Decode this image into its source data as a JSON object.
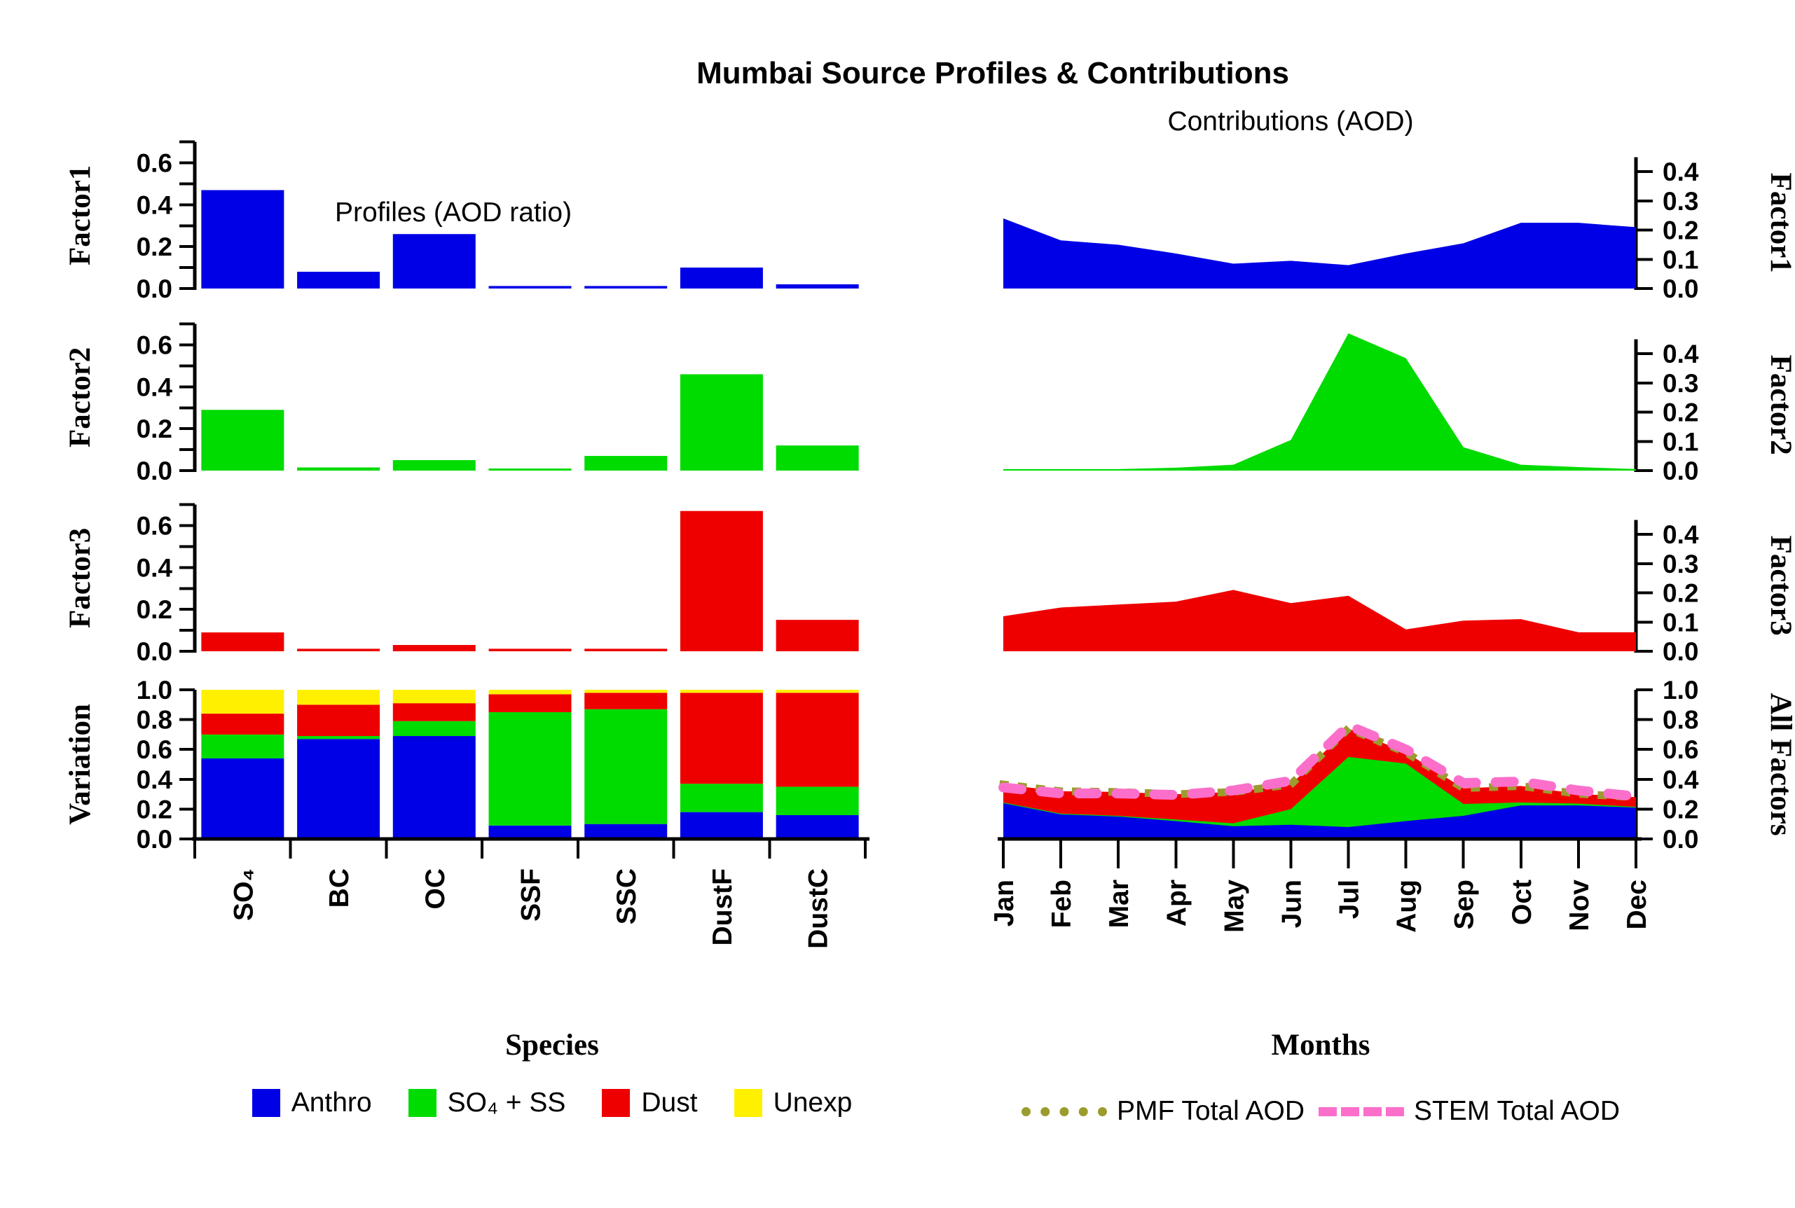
{
  "title": "Mumbai Source Profiles & Contributions",
  "panel_titles": {
    "left": "Profiles (AOD ratio)",
    "right": "Contributions (AOD)"
  },
  "row_labels_left": [
    "Factor1",
    "Factor2",
    "Factor3",
    "Variation"
  ],
  "row_labels_right": [
    "Factor1",
    "Factor2",
    "Factor3",
    "All Factors"
  ],
  "species": [
    "SO₄",
    "BC",
    "OC",
    "SSF",
    "SSC",
    "DustF",
    "DustC"
  ],
  "months": [
    "Jan",
    "Feb",
    "Mar",
    "Apr",
    "May",
    "Jun",
    "Jul",
    "Aug",
    "Sep",
    "Oct",
    "Nov",
    "Dec"
  ],
  "colors": {
    "anthro_blue": "#0000E6",
    "so4ss_green": "#00DB00",
    "dust_red": "#EF0000",
    "unexp_yellow": "#FFF000",
    "pmf_olive": "#9C9C2E",
    "stem_pink": "#FB6FCB"
  },
  "chart_data": [
    {
      "id": "factor1-profile",
      "type": "bar",
      "side": "left",
      "row": 0,
      "title": "Profiles (AOD ratio)",
      "ylabel": "Factor1",
      "categories": [
        "SO₄",
        "BC",
        "OC",
        "SSF",
        "SSC",
        "DustF",
        "DustC"
      ],
      "values": [
        0.47,
        0.08,
        0.26,
        0.012,
        0.012,
        0.1,
        0.02
      ],
      "color_key": "anthro_blue",
      "ylim": [
        0,
        0.7
      ],
      "yticks_all": [
        0,
        0.1,
        0.2,
        0.3,
        0.4,
        0.5,
        0.6,
        0.7
      ],
      "yticks_labeled": [
        0,
        0.2,
        0.4,
        0.6
      ]
    },
    {
      "id": "factor2-profile",
      "type": "bar",
      "side": "left",
      "row": 1,
      "ylabel": "Factor2",
      "categories": [
        "SO₄",
        "BC",
        "OC",
        "SSF",
        "SSC",
        "DustF",
        "DustC"
      ],
      "values": [
        0.29,
        0.015,
        0.05,
        0.01,
        0.07,
        0.46,
        0.12
      ],
      "color_key": "so4ss_green",
      "ylim": [
        0,
        0.7
      ],
      "yticks_all": [
        0,
        0.1,
        0.2,
        0.3,
        0.4,
        0.5,
        0.6,
        0.7
      ],
      "yticks_labeled": [
        0,
        0.2,
        0.4,
        0.6
      ]
    },
    {
      "id": "factor3-profile",
      "type": "bar",
      "side": "left",
      "row": 2,
      "ylabel": "Factor3",
      "categories": [
        "SO₄",
        "BC",
        "OC",
        "SSF",
        "SSC",
        "DustF",
        "DustC"
      ],
      "values": [
        0.09,
        0.012,
        0.03,
        0.012,
        0.012,
        0.67,
        0.15
      ],
      "color_key": "dust_red",
      "ylim": [
        0,
        0.7
      ],
      "yticks_all": [
        0,
        0.1,
        0.2,
        0.3,
        0.4,
        0.5,
        0.6,
        0.7
      ],
      "yticks_labeled": [
        0,
        0.2,
        0.4,
        0.6
      ]
    },
    {
      "id": "variation",
      "type": "bar-stacked",
      "side": "left",
      "row": 3,
      "ylabel": "Variation",
      "xlabel": "Species",
      "categories": [
        "SO₄",
        "BC",
        "OC",
        "SSF",
        "SSC",
        "DustF",
        "DustC"
      ],
      "series": [
        {
          "name": "Anthro",
          "color_key": "anthro_blue",
          "values": [
            0.54,
            0.67,
            0.69,
            0.09,
            0.1,
            0.18,
            0.16
          ]
        },
        {
          "name": "SO₄ + SS",
          "color_key": "so4ss_green",
          "values": [
            0.16,
            0.02,
            0.1,
            0.76,
            0.77,
            0.19,
            0.19
          ]
        },
        {
          "name": "Dust",
          "color_key": "dust_red",
          "values": [
            0.14,
            0.21,
            0.12,
            0.12,
            0.11,
            0.61,
            0.63
          ]
        },
        {
          "name": "Unexp",
          "color_key": "unexp_yellow",
          "values": [
            0.16,
            0.1,
            0.09,
            0.03,
            0.02,
            0.02,
            0.02
          ]
        }
      ],
      "ylim": [
        0,
        1.0
      ],
      "yticks_all": [
        0,
        0.2,
        0.4,
        0.6,
        0.8,
        1.0
      ],
      "yticks_labeled": [
        0,
        0.2,
        0.4,
        0.6,
        0.8,
        1.0
      ]
    },
    {
      "id": "factor1-contrib",
      "type": "area",
      "side": "right",
      "row": 0,
      "title": "Contributions (AOD)",
      "ylabel": "Factor1",
      "x": [
        "Jan",
        "Feb",
        "Mar",
        "Apr",
        "May",
        "Jun",
        "Jul",
        "Aug",
        "Sep",
        "Oct",
        "Nov",
        "Dec"
      ],
      "values": [
        0.24,
        0.165,
        0.15,
        0.12,
        0.085,
        0.095,
        0.08,
        0.12,
        0.155,
        0.225,
        0.225,
        0.21
      ],
      "color_key": "anthro_blue",
      "ylim": [
        0,
        0.45
      ],
      "yticks_all": [
        0,
        0.1,
        0.2,
        0.3,
        0.4
      ],
      "yticks_labeled": [
        0,
        0.1,
        0.2,
        0.3,
        0.4
      ]
    },
    {
      "id": "factor2-contrib",
      "type": "area",
      "side": "right",
      "row": 1,
      "ylabel": "Factor2",
      "x": [
        "Jan",
        "Feb",
        "Mar",
        "Apr",
        "May",
        "Jun",
        "Jul",
        "Aug",
        "Sep",
        "Oct",
        "Nov",
        "Dec"
      ],
      "values": [
        0.005,
        0.005,
        0.005,
        0.01,
        0.02,
        0.105,
        0.47,
        0.385,
        0.08,
        0.02,
        0.012,
        0.005
      ],
      "color_key": "so4ss_green",
      "ylim": [
        0,
        0.45
      ],
      "yticks_all": [
        0,
        0.1,
        0.2,
        0.3,
        0.4
      ],
      "yticks_labeled": [
        0,
        0.1,
        0.2,
        0.3,
        0.4
      ]
    },
    {
      "id": "factor3-contrib",
      "type": "area",
      "side": "right",
      "row": 2,
      "ylabel": "Factor3",
      "x": [
        "Jan",
        "Feb",
        "Mar",
        "Apr",
        "May",
        "Jun",
        "Jul",
        "Aug",
        "Sep",
        "Oct",
        "Nov",
        "Dec"
      ],
      "values": [
        0.12,
        0.15,
        0.16,
        0.17,
        0.21,
        0.165,
        0.19,
        0.075,
        0.105,
        0.11,
        0.065,
        0.065
      ],
      "color_key": "dust_red",
      "ylim": [
        0,
        0.45
      ],
      "yticks_all": [
        0,
        0.1,
        0.2,
        0.3,
        0.4
      ],
      "yticks_labeled": [
        0,
        0.1,
        0.2,
        0.3,
        0.4
      ]
    },
    {
      "id": "all-factors",
      "type": "area-stacked",
      "side": "right",
      "row": 3,
      "ylabel": "All Factors",
      "xlabel": "Months",
      "x": [
        "Jan",
        "Feb",
        "Mar",
        "Apr",
        "May",
        "Jun",
        "Jul",
        "Aug",
        "Sep",
        "Oct",
        "Nov",
        "Dec"
      ],
      "series": [
        {
          "name": "Factor1",
          "color_key": "anthro_blue",
          "values": [
            0.24,
            0.165,
            0.15,
            0.12,
            0.085,
            0.095,
            0.08,
            0.12,
            0.155,
            0.225,
            0.225,
            0.21
          ]
        },
        {
          "name": "Factor2",
          "color_key": "so4ss_green",
          "values": [
            0.005,
            0.005,
            0.005,
            0.01,
            0.02,
            0.105,
            0.47,
            0.385,
            0.08,
            0.02,
            0.012,
            0.005
          ]
        },
        {
          "name": "Factor3",
          "color_key": "dust_red",
          "values": [
            0.12,
            0.15,
            0.16,
            0.17,
            0.21,
            0.165,
            0.19,
            0.075,
            0.105,
            0.11,
            0.065,
            0.065
          ]
        }
      ],
      "lines": [
        {
          "name": "PMF Total AOD",
          "style": "dotted",
          "color_key": "pmf_olive",
          "values": [
            0.365,
            0.32,
            0.315,
            0.3,
            0.315,
            0.365,
            0.74,
            0.58,
            0.34,
            0.355,
            0.302,
            0.28
          ]
        },
        {
          "name": "STEM Total AOD",
          "style": "dashed",
          "color_key": "stem_pink",
          "values": [
            0.345,
            0.305,
            0.305,
            0.295,
            0.325,
            0.39,
            0.76,
            0.6,
            0.375,
            0.385,
            0.325,
            0.285
          ]
        }
      ],
      "ylim": [
        0,
        1.0
      ],
      "yticks_all": [
        0,
        0.2,
        0.4,
        0.6,
        0.8,
        1.0
      ],
      "yticks_labeled": [
        0,
        0.2,
        0.4,
        0.6,
        0.8,
        1.0
      ]
    }
  ],
  "legend_species": {
    "title": "Species",
    "items": [
      {
        "label": "Anthro",
        "color_key": "anthro_blue"
      },
      {
        "label": "SO₄ + SS",
        "color_key": "so4ss_green"
      },
      {
        "label": "Dust",
        "color_key": "dust_red"
      },
      {
        "label": "Unexp",
        "color_key": "unexp_yellow"
      }
    ]
  },
  "legend_months": {
    "title": "Months",
    "items": [
      {
        "label": "PMF Total AOD",
        "style": "dotted",
        "color_key": "pmf_olive"
      },
      {
        "label": "STEM Total AOD",
        "style": "dashed",
        "color_key": "stem_pink"
      }
    ]
  }
}
